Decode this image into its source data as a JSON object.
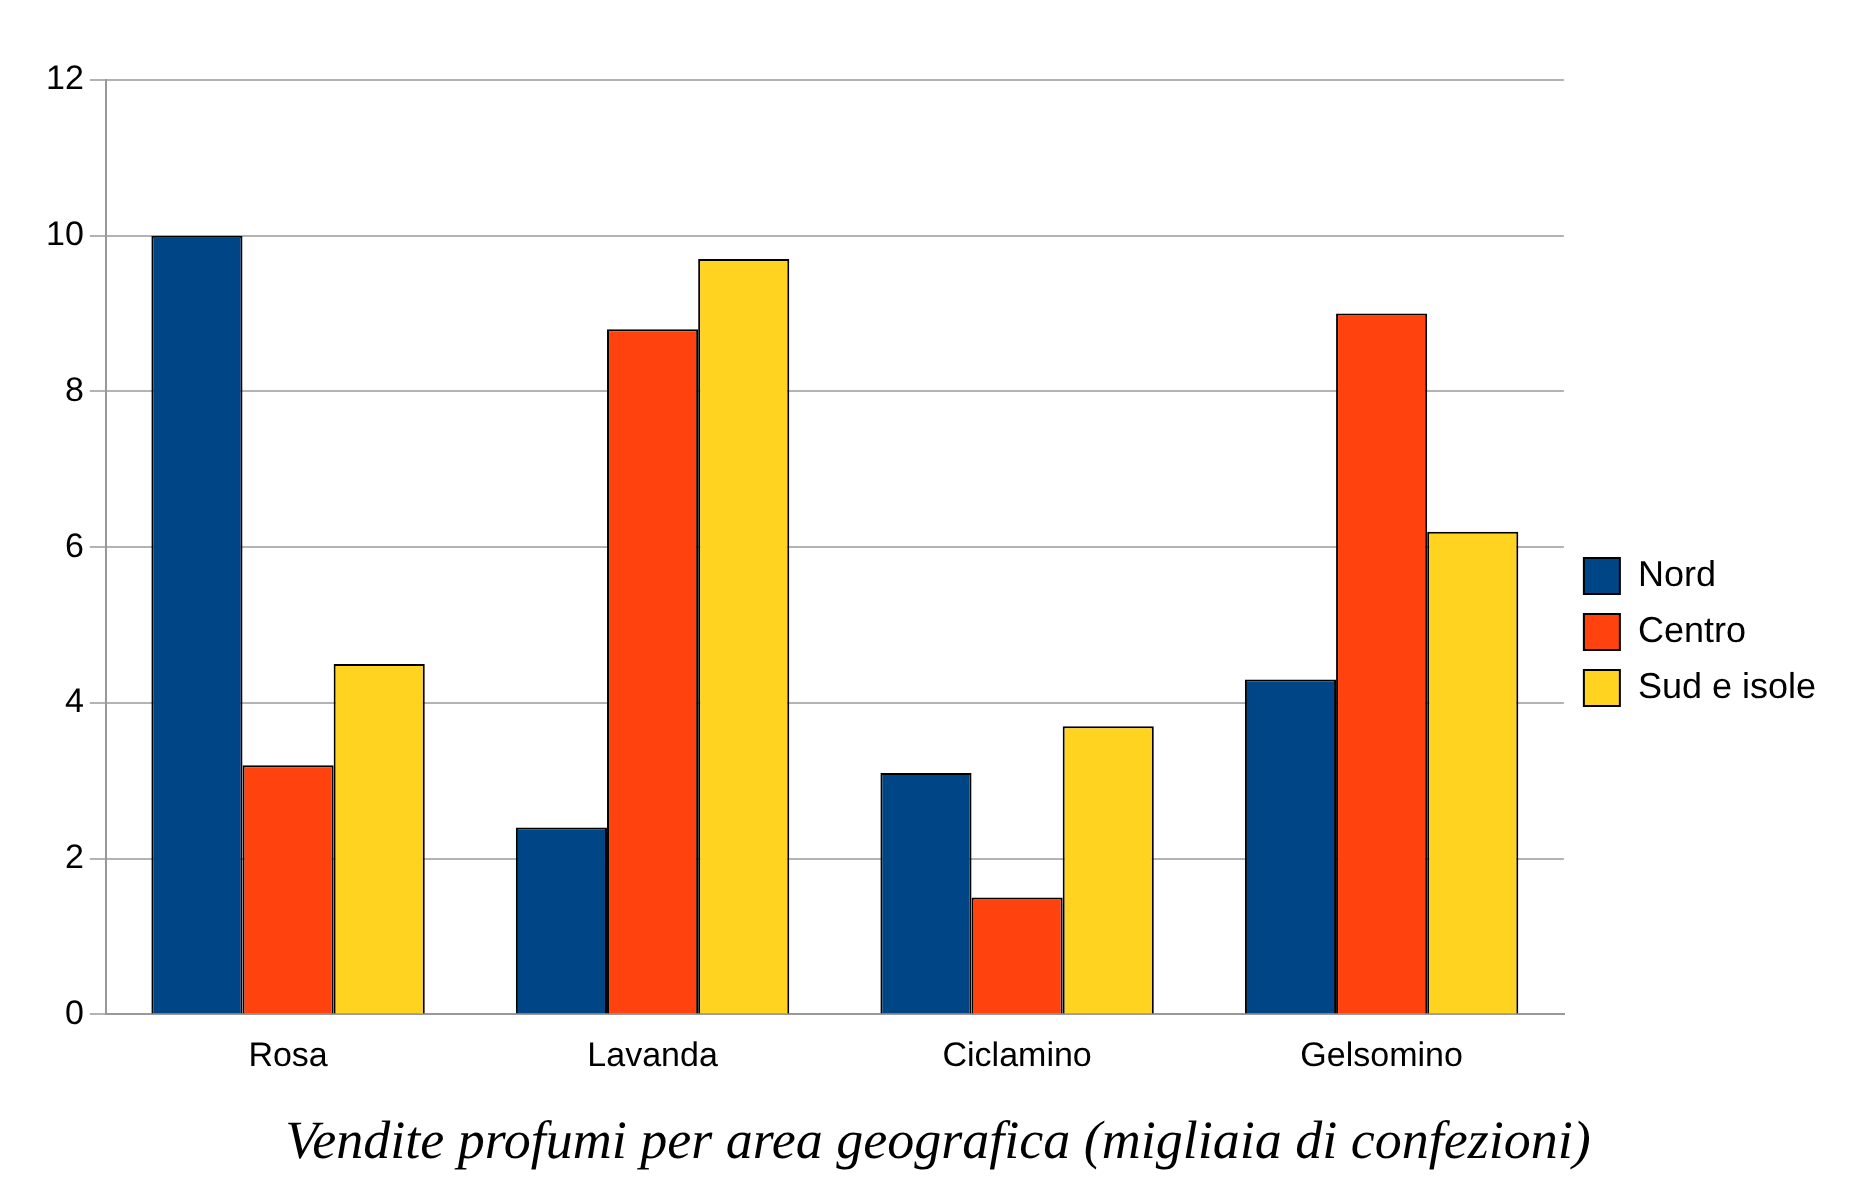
{
  "chart_data": {
    "type": "bar",
    "title": "Vendite profumi per area geografica (migliaia di confezioni)",
    "categories": [
      "Rosa",
      "Lavanda",
      "Ciclamino",
      "Gelsomino"
    ],
    "series": [
      {
        "name": "Nord",
        "color": "#004586",
        "values": [
          10,
          2.4,
          3.1,
          4.3
        ]
      },
      {
        "name": "Centro",
        "color": "#ff420e",
        "values": [
          3.2,
          8.8,
          1.5,
          9.0
        ]
      },
      {
        "name": "Sud e isole",
        "color": "#ffd320",
        "values": [
          4.5,
          9.7,
          3.7,
          6.2
        ]
      }
    ],
    "ylim": [
      0,
      12
    ],
    "yticks": [
      0,
      2,
      4,
      6,
      8,
      10,
      12
    ],
    "grid": "y",
    "legend": "right"
  }
}
